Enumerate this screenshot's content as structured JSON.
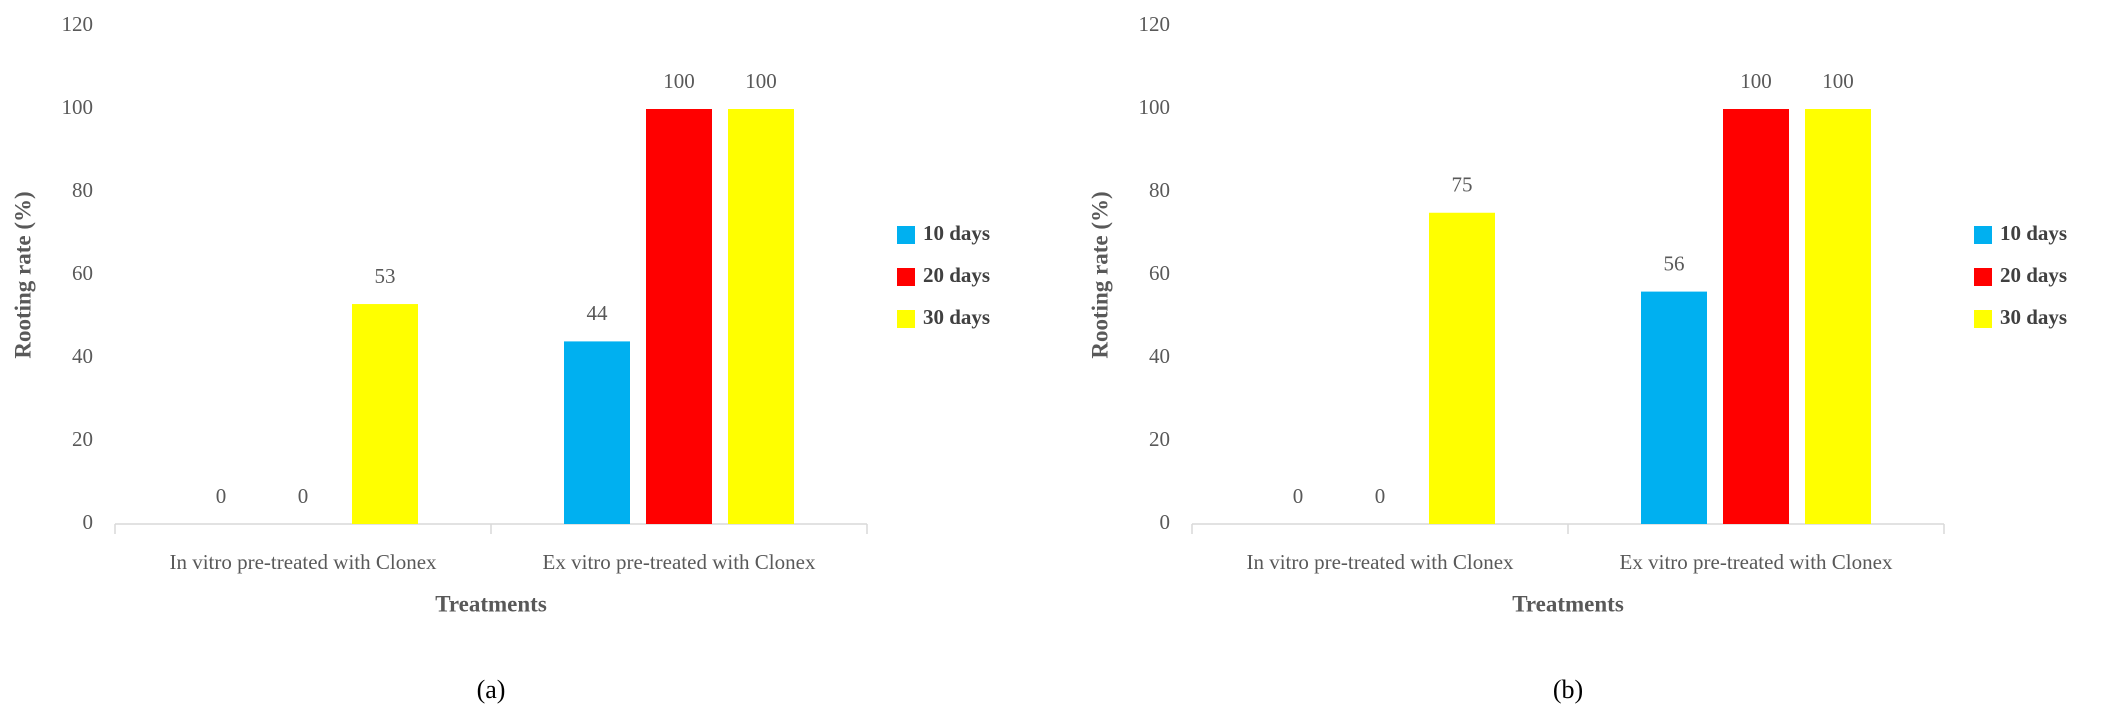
{
  "chart_data": [
    {
      "type": "bar",
      "panel_label": "(a)",
      "xlabel": "Treatments",
      "ylabel": "Rooting rate (%)",
      "categories": [
        "In vitro pre-treated with Clonex",
        "Ex vitro pre-treated with Clonex"
      ],
      "series": [
        {
          "name": "10 days",
          "color": "#00b0f0",
          "values": [
            0,
            44
          ]
        },
        {
          "name": "20 days",
          "color": "#ff0000",
          "values": [
            0,
            100
          ]
        },
        {
          "name": "30 days",
          "color": "#ffff00",
          "values": [
            53,
            100
          ]
        }
      ],
      "ylim": [
        0,
        120
      ],
      "yticks": [
        0,
        20,
        40,
        60,
        80,
        100,
        120
      ],
      "grid": false,
      "legend": "right"
    },
    {
      "type": "bar",
      "panel_label": "(b)",
      "xlabel": "Treatments",
      "ylabel": "Rooting rate (%)",
      "categories": [
        "In vitro pre-treated with Clonex",
        "Ex vitro pre-treated with Clonex"
      ],
      "series": [
        {
          "name": "10 days",
          "color": "#00b0f0",
          "values": [
            0,
            56
          ]
        },
        {
          "name": "20 days",
          "color": "#ff0000",
          "values": [
            0,
            100
          ]
        },
        {
          "name": "30 days",
          "color": "#ffff00",
          "values": [
            75,
            100
          ]
        }
      ],
      "ylim": [
        0,
        120
      ],
      "yticks": [
        0,
        20,
        40,
        60,
        80,
        100,
        120
      ],
      "grid": false,
      "legend": "right"
    }
  ]
}
